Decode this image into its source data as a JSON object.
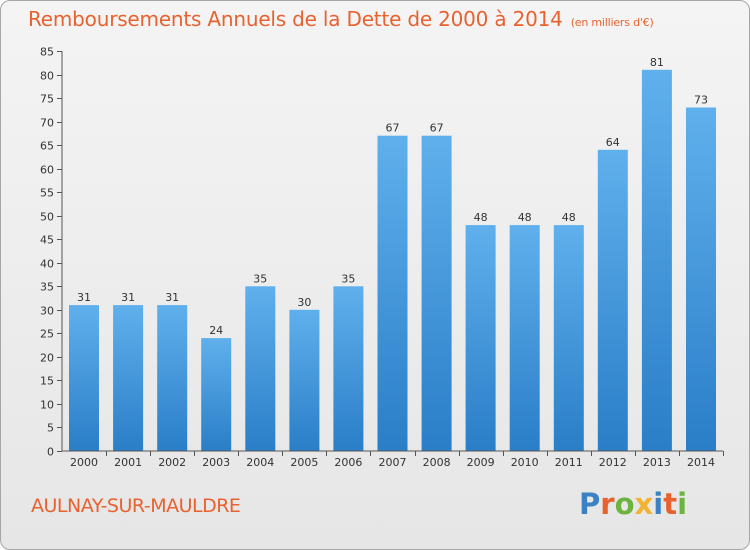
{
  "chart_data": {
    "type": "bar",
    "title": "Remboursements Annuels de la Dette de 2000 à 2014",
    "subtitle": "(en milliers d'€)",
    "categories": [
      "2000",
      "2001",
      "2002",
      "2003",
      "2004",
      "2005",
      "2006",
      "2007",
      "2008",
      "2009",
      "2010",
      "2011",
      "2012",
      "2013",
      "2014"
    ],
    "values": [
      31,
      31,
      31,
      24,
      35,
      30,
      35,
      67,
      67,
      48,
      48,
      48,
      64,
      81,
      73
    ],
    "ylim": [
      0,
      85
    ],
    "yticks": [
      0,
      5,
      10,
      15,
      20,
      25,
      30,
      35,
      40,
      45,
      50,
      55,
      60,
      65,
      70,
      75,
      80,
      85
    ],
    "xlabel": "",
    "ylabel": "",
    "grid": false,
    "bar_color": "#4a9be0"
  },
  "footer": {
    "city": "AULNAY-SUR-MAULDRE",
    "logo_letters": [
      "P",
      "r",
      "o",
      "x",
      "i",
      "t",
      "i"
    ],
    "logo_colors": [
      "#3b82c4",
      "#e8622f",
      "#6db33f",
      "#f2b233",
      "#3b82c4",
      "#e8622f",
      "#6db33f"
    ]
  },
  "colors": {
    "accent": "#e8622f"
  }
}
